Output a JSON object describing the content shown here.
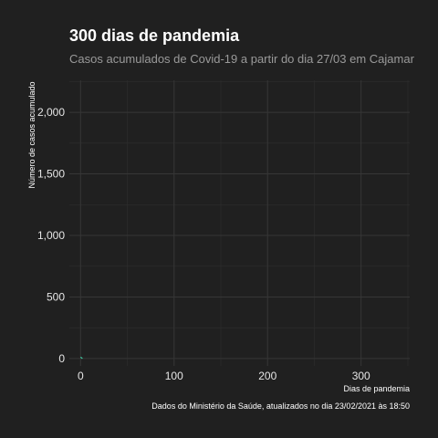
{
  "chart_data": {
    "type": "line",
    "title": "300 dias de pandemia",
    "subtitle": "Casos acumulados de Covid-19 a partir do dia 27/03 em Cajamar",
    "xlabel": "Dias de pandemia",
    "ylabel": "Número de casos acumulado",
    "caption": "Dados do Ministério da Saúde, atualizados no dia 23/02/2021 às 18:50",
    "xlim": [
      -12,
      352
    ],
    "ylim": [
      -60,
      2260
    ],
    "x_ticks": [
      0,
      100,
      200,
      300
    ],
    "x_tick_labels": [
      "0",
      "100",
      "200",
      "300"
    ],
    "y_ticks": [
      0,
      500,
      1000,
      1500,
      2000
    ],
    "y_tick_labels": [
      "0",
      "500",
      "1,000",
      "1,500",
      "2,000"
    ],
    "grid": true,
    "series": [
      {
        "color": "#3fc7a0",
        "x": [
          0,
          1,
          2
        ],
        "y": [
          12,
          6,
          0
        ]
      }
    ]
  }
}
